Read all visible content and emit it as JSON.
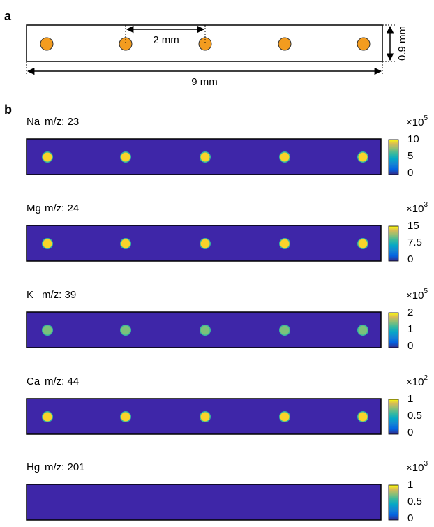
{
  "panel_a": {
    "label": "a",
    "spacing_label": "2 mm",
    "length_label": "9 mm",
    "width_label": "0.9 mm"
  },
  "panel_b": {
    "label": "b",
    "rows": [
      {
        "element": "Na",
        "mz": "m/z: 23",
        "scale_base": "×10",
        "scale_exp": "5",
        "ticks": [
          "10",
          "5",
          "0"
        ]
      },
      {
        "element": "Mg",
        "mz": "m/z: 24",
        "scale_base": "×10",
        "scale_exp": "3",
        "ticks": [
          "15",
          "7.5",
          "0"
        ]
      },
      {
        "element": "K",
        "mz": "m/z: 39",
        "scale_base": "×10",
        "scale_exp": "5",
        "ticks": [
          "2",
          "1",
          "0"
        ]
      },
      {
        "element": "Ca",
        "mz": "m/z: 44",
        "scale_base": "×10",
        "scale_exp": "2",
        "ticks": [
          "1",
          "0.5",
          "0"
        ]
      },
      {
        "element": "Hg",
        "mz": "m/z: 201",
        "scale_base": "×10",
        "scale_exp": "3",
        "ticks": [
          "1",
          "0.5",
          "0"
        ]
      }
    ]
  }
}
